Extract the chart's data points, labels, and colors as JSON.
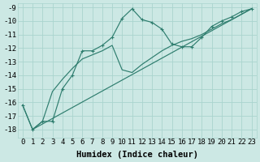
{
  "line1_x": [
    0,
    1,
    2,
    3,
    4,
    5,
    6,
    7,
    8,
    9,
    10,
    11,
    12,
    13,
    14,
    15,
    16,
    17,
    18,
    19,
    20,
    21,
    22,
    23
  ],
  "line1_y": [
    -16.2,
    -18.0,
    -17.4,
    -17.4,
    -15.0,
    -14.0,
    -12.2,
    -12.2,
    -11.8,
    -11.2,
    -9.8,
    -9.1,
    -9.9,
    -10.1,
    -10.6,
    -11.7,
    -11.9,
    -11.9,
    -11.2,
    -10.4,
    -10.0,
    -9.7,
    -9.3,
    -9.1
  ],
  "line2_x": [
    1,
    23
  ],
  "line2_y": [
    -18.0,
    -9.1
  ],
  "line3_x": [
    0,
    1,
    2,
    3,
    4,
    5,
    6,
    7,
    8,
    9,
    10,
    11,
    12,
    13,
    14,
    15,
    16,
    17,
    18,
    19,
    20,
    21,
    22,
    23
  ],
  "line3_y": [
    -16.2,
    -18.0,
    -17.4,
    -15.2,
    -14.3,
    -13.5,
    -12.8,
    -12.5,
    -12.2,
    -11.8,
    -13.6,
    -13.8,
    -13.2,
    -12.7,
    -12.2,
    -11.8,
    -11.5,
    -11.3,
    -11.0,
    -10.6,
    -10.2,
    -9.9,
    -9.5,
    -9.1
  ],
  "color": "#2e7d6e",
  "bg_color": "#cce8e4",
  "grid_color": "#aad4ce",
  "xlabel": "Humidex (Indice chaleur)",
  "xlim": [
    -0.5,
    23.5
  ],
  "ylim": [
    -18.6,
    -8.7
  ],
  "yticks": [
    -9,
    -10,
    -11,
    -12,
    -13,
    -14,
    -15,
    -16,
    -17,
    -18
  ],
  "xticks": [
    0,
    1,
    2,
    3,
    4,
    5,
    6,
    7,
    8,
    9,
    10,
    11,
    12,
    13,
    14,
    15,
    16,
    17,
    18,
    19,
    20,
    21,
    22,
    23
  ],
  "fontsize": 6.5,
  "label_fontsize": 7.5
}
